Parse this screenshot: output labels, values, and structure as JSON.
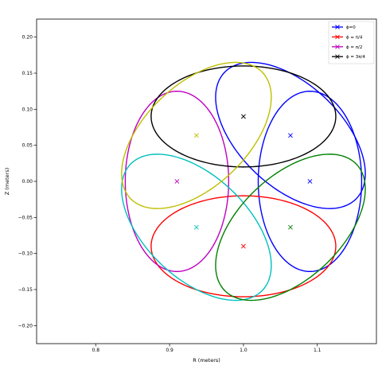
{
  "chart_data": {
    "type": "line",
    "xlabel": "R (meters)",
    "ylabel": "Z (meters)",
    "xlim": [
      0.72,
      1.18
    ],
    "ylim": [
      -0.225,
      0.225
    ],
    "xticks": [
      0.8,
      0.9,
      1.0,
      1.1
    ],
    "xtick_labels": [
      "0.8",
      "0.9",
      "1.0",
      "1.1"
    ],
    "yticks": [
      -0.2,
      -0.15,
      -0.1,
      -0.05,
      0.0,
      0.05,
      0.1,
      0.15,
      0.2
    ],
    "ytick_labels": [
      "−0.20",
      "−0.15",
      "−0.10",
      "−0.05",
      "0.00",
      "0.05",
      "0.10",
      "0.15",
      "0.20"
    ],
    "grid": false,
    "legend_position": "top-right",
    "legend": [
      {
        "label": "ϕ=0",
        "color": "#0000ff"
      },
      {
        "label": "ϕ = π/4",
        "color": "#ff0000"
      },
      {
        "label": "ϕ = π/2",
        "color": "#bf00bf"
      },
      {
        "label": "ϕ = 3π/4",
        "color": "#000000"
      }
    ],
    "series": [
      {
        "color": "#0000ff",
        "center": [
          1.0,
          0.0
        ],
        "offset": 0.09,
        "shape": [
          0.07,
          0.125
        ],
        "angles": [
          0,
          45
        ]
      },
      {
        "color": "#ff0000",
        "center": [
          1.0,
          0.0
        ],
        "offset": 0.09,
        "shape": [
          0.07,
          0.125
        ],
        "angles": [
          270
        ]
      },
      {
        "color": "#bf00bf",
        "center": [
          1.0,
          0.0
        ],
        "offset": 0.09,
        "shape": [
          0.07,
          0.125
        ],
        "angles": [
          180
        ]
      },
      {
        "color": "#000000",
        "center": [
          1.0,
          0.0
        ],
        "offset": 0.09,
        "shape": [
          0.07,
          0.125
        ],
        "angles": [
          90
        ]
      },
      {
        "color": "#00bfbf",
        "center": [
          1.0,
          0.0
        ],
        "offset": 0.09,
        "shape": [
          0.07,
          0.125
        ],
        "angles": [
          225
        ]
      },
      {
        "color": "#bfbf00",
        "center": [
          1.0,
          0.0
        ],
        "offset": 0.09,
        "shape": [
          0.07,
          0.125
        ],
        "angles": [
          135
        ]
      },
      {
        "color": "#008000",
        "center": [
          1.0,
          0.0
        ],
        "offset": 0.09,
        "shape": [
          0.07,
          0.125
        ],
        "angles": [
          315
        ]
      }
    ]
  }
}
